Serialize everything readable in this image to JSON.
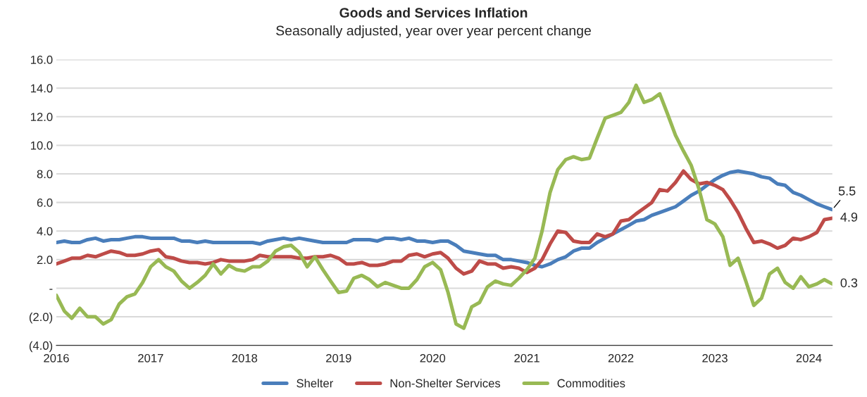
{
  "chart_data": {
    "type": "line",
    "title": "Goods and Services Inflation",
    "subtitle": "Seasonally adjusted, year over year percent change",
    "x": [
      "2016-01",
      "2016-02",
      "2016-03",
      "2016-04",
      "2016-05",
      "2016-06",
      "2016-07",
      "2016-08",
      "2016-09",
      "2016-10",
      "2016-11",
      "2016-12",
      "2017-01",
      "2017-02",
      "2017-03",
      "2017-04",
      "2017-05",
      "2017-06",
      "2017-07",
      "2017-08",
      "2017-09",
      "2017-10",
      "2017-11",
      "2017-12",
      "2018-01",
      "2018-02",
      "2018-03",
      "2018-04",
      "2018-05",
      "2018-06",
      "2018-07",
      "2018-08",
      "2018-09",
      "2018-10",
      "2018-11",
      "2018-12",
      "2019-01",
      "2019-02",
      "2019-03",
      "2019-04",
      "2019-05",
      "2019-06",
      "2019-07",
      "2019-08",
      "2019-09",
      "2019-10",
      "2019-11",
      "2019-12",
      "2020-01",
      "2020-02",
      "2020-03",
      "2020-04",
      "2020-05",
      "2020-06",
      "2020-07",
      "2020-08",
      "2020-09",
      "2020-10",
      "2020-11",
      "2020-12",
      "2021-01",
      "2021-02",
      "2021-03",
      "2021-04",
      "2021-05",
      "2021-06",
      "2021-07",
      "2021-08",
      "2021-09",
      "2021-10",
      "2021-11",
      "2021-12",
      "2022-01",
      "2022-02",
      "2022-03",
      "2022-04",
      "2022-05",
      "2022-06",
      "2022-07",
      "2022-08",
      "2022-09",
      "2022-10",
      "2022-11",
      "2022-12",
      "2023-01",
      "2023-02",
      "2023-03",
      "2023-04",
      "2023-05",
      "2023-06",
      "2023-07",
      "2023-08",
      "2023-09",
      "2023-10",
      "2023-11",
      "2023-12",
      "2024-01",
      "2024-02",
      "2024-03",
      "2024-04"
    ],
    "series": [
      {
        "name": "Shelter",
        "color": "#4a7ebb",
        "values": [
          3.2,
          3.3,
          3.2,
          3.2,
          3.4,
          3.5,
          3.3,
          3.4,
          3.4,
          3.5,
          3.6,
          3.6,
          3.5,
          3.5,
          3.5,
          3.5,
          3.3,
          3.3,
          3.2,
          3.3,
          3.2,
          3.2,
          3.2,
          3.2,
          3.2,
          3.2,
          3.1,
          3.3,
          3.4,
          3.5,
          3.4,
          3.5,
          3.4,
          3.3,
          3.2,
          3.2,
          3.2,
          3.2,
          3.4,
          3.4,
          3.4,
          3.3,
          3.5,
          3.5,
          3.4,
          3.5,
          3.3,
          3.3,
          3.2,
          3.3,
          3.3,
          3.0,
          2.6,
          2.5,
          2.4,
          2.3,
          2.3,
          2.0,
          2.0,
          1.9,
          1.8,
          1.6,
          1.5,
          1.7,
          2.0,
          2.2,
          2.6,
          2.8,
          2.8,
          3.2,
          3.5,
          3.8,
          4.1,
          4.4,
          4.7,
          4.8,
          5.1,
          5.3,
          5.5,
          5.7,
          6.1,
          6.5,
          6.8,
          7.2,
          7.6,
          7.9,
          8.1,
          8.2,
          8.1,
          8.0,
          7.8,
          7.7,
          7.3,
          7.2,
          6.7,
          6.5,
          6.2,
          5.9,
          5.7,
          5.5
        ]
      },
      {
        "name": "Non-Shelter Services",
        "color": "#be4b48",
        "values": [
          1.7,
          1.9,
          2.1,
          2.1,
          2.3,
          2.2,
          2.4,
          2.6,
          2.5,
          2.3,
          2.3,
          2.4,
          2.6,
          2.7,
          2.2,
          2.1,
          1.9,
          1.8,
          1.8,
          1.7,
          1.8,
          2.0,
          1.9,
          1.9,
          1.9,
          2.0,
          2.3,
          2.2,
          2.2,
          2.2,
          2.2,
          2.1,
          2.1,
          2.2,
          2.2,
          2.3,
          2.1,
          1.7,
          1.7,
          1.8,
          1.6,
          1.6,
          1.7,
          1.9,
          1.9,
          2.3,
          2.4,
          2.2,
          2.4,
          2.5,
          2.1,
          1.4,
          1.0,
          1.2,
          1.9,
          1.7,
          1.7,
          1.4,
          1.5,
          1.4,
          1.1,
          1.4,
          2.0,
          3.1,
          4.0,
          3.9,
          3.3,
          3.2,
          3.2,
          3.8,
          3.6,
          3.8,
          4.7,
          4.8,
          5.2,
          5.6,
          6.0,
          6.9,
          6.8,
          7.4,
          8.2,
          7.6,
          7.3,
          7.4,
          7.2,
          6.9,
          6.2,
          5.3,
          4.2,
          3.2,
          3.3,
          3.1,
          2.8,
          3.0,
          3.5,
          3.4,
          3.6,
          3.9,
          4.8,
          4.9
        ]
      },
      {
        "name": "Commodities",
        "color": "#98b954",
        "values": [
          -0.5,
          -1.6,
          -2.1,
          -1.4,
          -2.0,
          -2.0,
          -2.5,
          -2.2,
          -1.1,
          -0.6,
          -0.4,
          0.4,
          1.5,
          2.0,
          1.5,
          1.2,
          0.5,
          0.0,
          0.4,
          0.9,
          1.7,
          1.0,
          1.6,
          1.3,
          1.2,
          1.5,
          1.5,
          1.9,
          2.6,
          2.9,
          3.0,
          2.5,
          1.5,
          2.2,
          1.3,
          0.5,
          -0.3,
          -0.2,
          0.7,
          0.9,
          0.6,
          0.1,
          0.4,
          0.2,
          0.0,
          0.0,
          0.6,
          1.5,
          1.8,
          1.3,
          -0.3,
          -2.5,
          -2.8,
          -1.3,
          -1.0,
          0.1,
          0.5,
          0.3,
          0.2,
          0.7,
          1.3,
          2.1,
          4.0,
          6.7,
          8.3,
          9.0,
          9.2,
          9.0,
          9.1,
          10.5,
          11.9,
          12.1,
          12.3,
          13.0,
          14.2,
          13.0,
          13.2,
          13.6,
          12.2,
          10.7,
          9.6,
          8.6,
          6.9,
          4.8,
          4.5,
          3.6,
          1.6,
          2.1,
          0.5,
          -1.2,
          -0.7,
          1.0,
          1.4,
          0.4,
          0.0,
          0.8,
          0.1,
          0.3,
          0.6,
          0.3
        ]
      }
    ],
    "xlim": [
      "2016-01",
      "2024-04"
    ],
    "xticks": [
      "2016",
      "2017",
      "2018",
      "2019",
      "2020",
      "2021",
      "2022",
      "2023",
      "2024"
    ],
    "ylim": [
      -4,
      16
    ],
    "yticks": [
      {
        "value": -4,
        "label": "(4.0)"
      },
      {
        "value": -2,
        "label": "(2.0)"
      },
      {
        "value": 0,
        "label": "-"
      },
      {
        "value": 2,
        "label": "2.0"
      },
      {
        "value": 4,
        "label": "4.0"
      },
      {
        "value": 6,
        "label": "6.0"
      },
      {
        "value": 8,
        "label": "8.0"
      },
      {
        "value": 10,
        "label": "10.0"
      },
      {
        "value": 12,
        "label": "12.0"
      },
      {
        "value": 14,
        "label": "14.0"
      },
      {
        "value": 16,
        "label": "16.0"
      }
    ],
    "annotations": [
      {
        "text": "5.5",
        "x": "2024-04",
        "y": 5.5
      },
      {
        "text": "4.9",
        "x": "2024-04",
        "y": 4.9
      },
      {
        "text": "0.3",
        "x": "2024-04",
        "y": 0.3
      }
    ],
    "grid": "y",
    "legend": "bottom",
    "marker": "none",
    "line_style": "solid"
  }
}
